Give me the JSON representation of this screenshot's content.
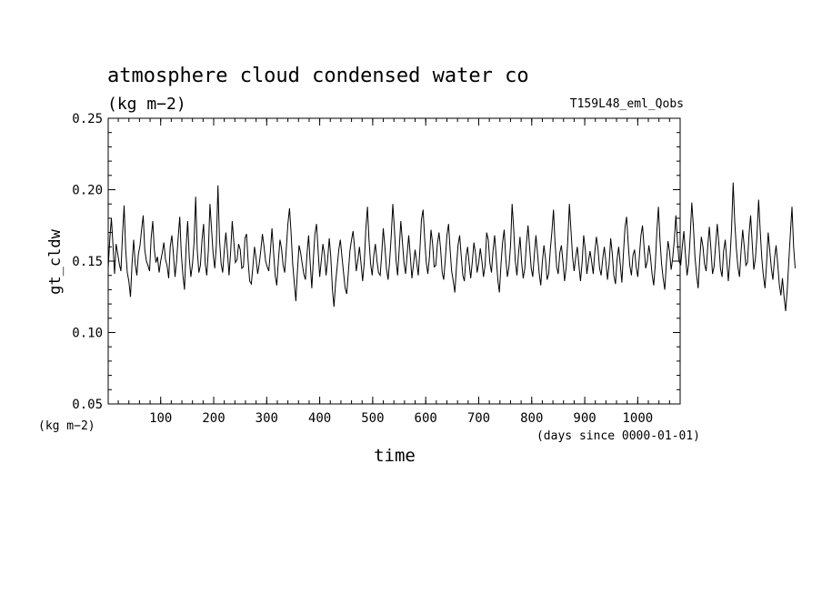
{
  "chart_data": {
    "type": "line",
    "title": "atmosphere cloud condensed water co",
    "units": "(kg m−2)",
    "run_label": "T159L48_eml_Qobs",
    "ylabel": "gt_cldw",
    "y_units_label": "(kg m−2)",
    "xlabel": "time",
    "x_units_label": "(days since 0000-01-01)",
    "xlim": [
      1,
      1080
    ],
    "ylim": [
      0.05,
      0.25
    ],
    "x_ticks": [
      100,
      200,
      300,
      400,
      500,
      600,
      700,
      800,
      900,
      1000
    ],
    "y_ticks": [
      "0.05",
      "0.10",
      "0.15",
      "0.20",
      "0.25"
    ],
    "grid": false,
    "line_color": "#000000",
    "series": [
      {
        "x_start": 1,
        "x_step": 3,
        "values": [
          0.145,
          0.165,
          0.18,
          0.162,
          0.141,
          0.162,
          0.155,
          0.148,
          0.143,
          0.168,
          0.189,
          0.158,
          0.142,
          0.136,
          0.125,
          0.148,
          0.165,
          0.148,
          0.14,
          0.155,
          0.161,
          0.172,
          0.182,
          0.158,
          0.15,
          0.147,
          0.143,
          0.166,
          0.178,
          0.158,
          0.149,
          0.153,
          0.142,
          0.15,
          0.156,
          0.163,
          0.151,
          0.147,
          0.138,
          0.16,
          0.168,
          0.155,
          0.139,
          0.15,
          0.166,
          0.181,
          0.155,
          0.14,
          0.13,
          0.16,
          0.178,
          0.152,
          0.139,
          0.148,
          0.163,
          0.195,
          0.158,
          0.142,
          0.147,
          0.165,
          0.176,
          0.148,
          0.14,
          0.158,
          0.19,
          0.172,
          0.155,
          0.145,
          0.161,
          0.203,
          0.165,
          0.148,
          0.142,
          0.158,
          0.17,
          0.156,
          0.14,
          0.157,
          0.178,
          0.163,
          0.149,
          0.151,
          0.162,
          0.158,
          0.145,
          0.146,
          0.166,
          0.169,
          0.15,
          0.136,
          0.134,
          0.146,
          0.16,
          0.152,
          0.141,
          0.148,
          0.158,
          0.169,
          0.16,
          0.15,
          0.146,
          0.143,
          0.157,
          0.173,
          0.156,
          0.14,
          0.133,
          0.15,
          0.165,
          0.159,
          0.147,
          0.142,
          0.159,
          0.176,
          0.187,
          0.17,
          0.148,
          0.135,
          0.122,
          0.143,
          0.161,
          0.156,
          0.148,
          0.141,
          0.137,
          0.155,
          0.168,
          0.149,
          0.131,
          0.151,
          0.169,
          0.176,
          0.158,
          0.139,
          0.15,
          0.162,
          0.155,
          0.14,
          0.151,
          0.166,
          0.153,
          0.13,
          0.118,
          0.135,
          0.146,
          0.158,
          0.165,
          0.153,
          0.142,
          0.131,
          0.127,
          0.142,
          0.157,
          0.165,
          0.171,
          0.158,
          0.143,
          0.151,
          0.16,
          0.148,
          0.136,
          0.149,
          0.172,
          0.188,
          0.165,
          0.148,
          0.14,
          0.154,
          0.162,
          0.15,
          0.142,
          0.14,
          0.155,
          0.173,
          0.16,
          0.145,
          0.137,
          0.15,
          0.168,
          0.19,
          0.172,
          0.151,
          0.14,
          0.158,
          0.178,
          0.164,
          0.149,
          0.141,
          0.155,
          0.168,
          0.153,
          0.138,
          0.148,
          0.158,
          0.149,
          0.14,
          0.158,
          0.179,
          0.186,
          0.166,
          0.149,
          0.141,
          0.153,
          0.172,
          0.162,
          0.146,
          0.147,
          0.162,
          0.17,
          0.159,
          0.142,
          0.137,
          0.152,
          0.168,
          0.176,
          0.158,
          0.143,
          0.136,
          0.128,
          0.146,
          0.161,
          0.168,
          0.154,
          0.14,
          0.136,
          0.153,
          0.16,
          0.148,
          0.138,
          0.15,
          0.163,
          0.155,
          0.142,
          0.149,
          0.159,
          0.15,
          0.139,
          0.147,
          0.17,
          0.165,
          0.149,
          0.142,
          0.157,
          0.168,
          0.153,
          0.137,
          0.128,
          0.148,
          0.163,
          0.172,
          0.152,
          0.139,
          0.146,
          0.161,
          0.19,
          0.172,
          0.15,
          0.14,
          0.155,
          0.167,
          0.149,
          0.138,
          0.145,
          0.162,
          0.175,
          0.16,
          0.145,
          0.139,
          0.155,
          0.168,
          0.155,
          0.142,
          0.133,
          0.149,
          0.161,
          0.152,
          0.137,
          0.141,
          0.158,
          0.17,
          0.186,
          0.163,
          0.146,
          0.141,
          0.156,
          0.161,
          0.149,
          0.136,
          0.146,
          0.164,
          0.19,
          0.172,
          0.153,
          0.143,
          0.153,
          0.16,
          0.147,
          0.136,
          0.149,
          0.168,
          0.158,
          0.141,
          0.15,
          0.157,
          0.15,
          0.141,
          0.156,
          0.167,
          0.159,
          0.145,
          0.14,
          0.152,
          0.16,
          0.149,
          0.137,
          0.148,
          0.166,
          0.155,
          0.14,
          0.134,
          0.151,
          0.16,
          0.148,
          0.135,
          0.155,
          0.174,
          0.181,
          0.162,
          0.147,
          0.14,
          0.154,
          0.158,
          0.146,
          0.139,
          0.153,
          0.168,
          0.175,
          0.159,
          0.145,
          0.15,
          0.161,
          0.153,
          0.141,
          0.133,
          0.147,
          0.171,
          0.188,
          0.165,
          0.148,
          0.138,
          0.13,
          0.148,
          0.164,
          0.157,
          0.144,
          0.152,
          0.165,
          0.182,
          0.163,
          0.15,
          0.147,
          0.16,
          0.171,
          0.155,
          0.14,
          0.148,
          0.168,
          0.191,
          0.174,
          0.153,
          0.14,
          0.131,
          0.152,
          0.167,
          0.16,
          0.148,
          0.143,
          0.16,
          0.174,
          0.159,
          0.141,
          0.146,
          0.162,
          0.176,
          0.162,
          0.145,
          0.139,
          0.157,
          0.165,
          0.15,
          0.136,
          0.152,
          0.172,
          0.205,
          0.178,
          0.159,
          0.146,
          0.139,
          0.157,
          0.172,
          0.16,
          0.147,
          0.149,
          0.169,
          0.182,
          0.162,
          0.144,
          0.152,
          0.168,
          0.193,
          0.172,
          0.152,
          0.14,
          0.131,
          0.148,
          0.17,
          0.158,
          0.145,
          0.137,
          0.152,
          0.161,
          0.148,
          0.134,
          0.126,
          0.138,
          0.125,
          0.115,
          0.13,
          0.15,
          0.17,
          0.188,
          0.16,
          0.145
        ]
      }
    ]
  }
}
